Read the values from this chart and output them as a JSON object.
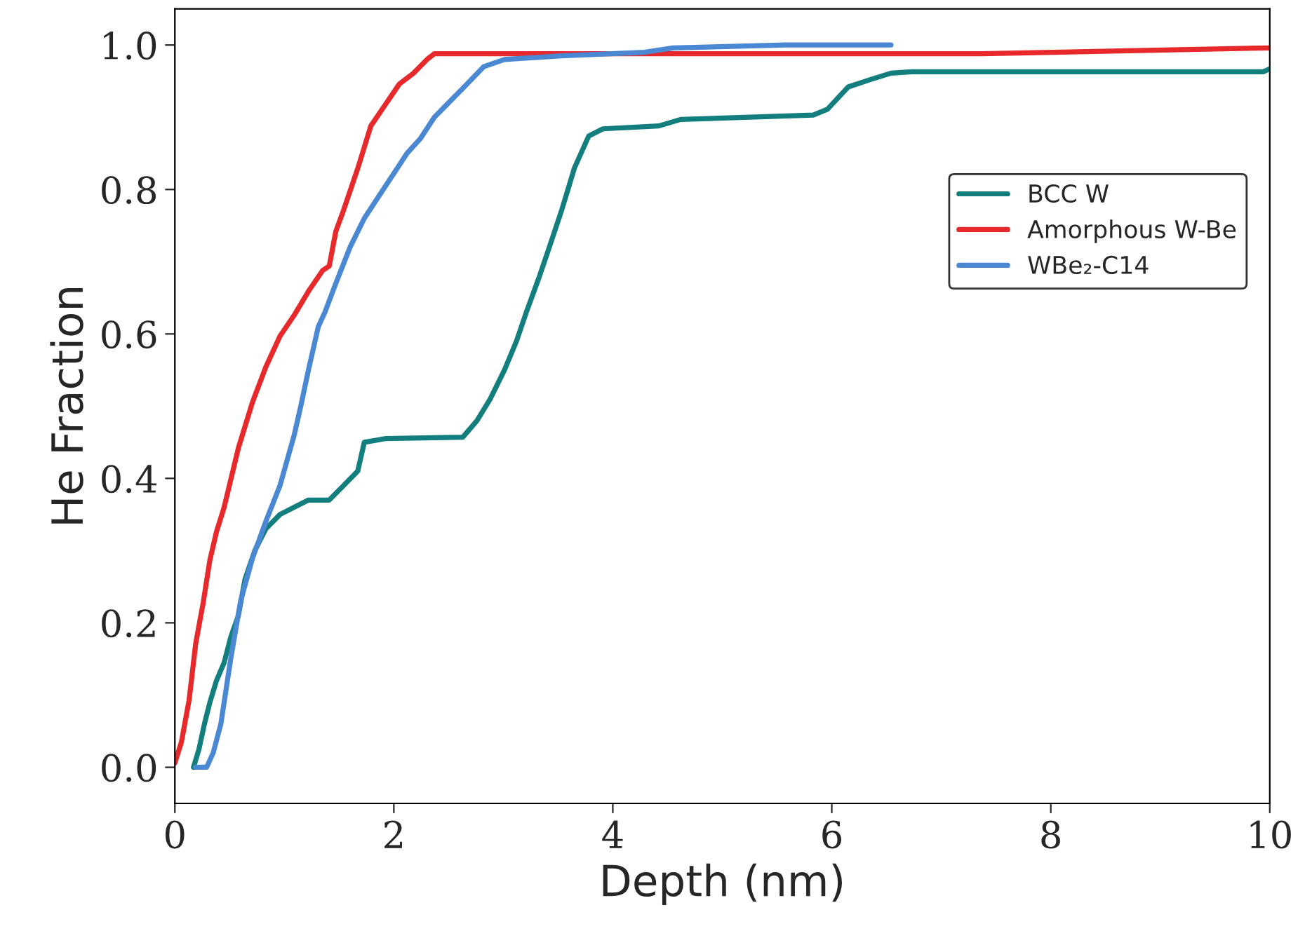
{
  "chart_data": {
    "type": "line",
    "xlabel": "Depth (nm)",
    "ylabel": "He Fraction",
    "xlim": [
      0,
      10
    ],
    "ylim": [
      -0.05,
      1.05
    ],
    "xticks": [
      0,
      2,
      4,
      6,
      8,
      10
    ],
    "yticks": [
      {
        "value": 0,
        "label": "0.0"
      },
      {
        "value": 0.2,
        "label": "0.2"
      },
      {
        "value": 0.4,
        "label": "0.4"
      },
      {
        "value": 0.6,
        "label": "0.6"
      },
      {
        "value": 0.8,
        "label": "0.8"
      },
      {
        "value": 1,
        "label": "1.0"
      }
    ],
    "grid": false,
    "legend": "right",
    "marker": "none",
    "line_style": "solid",
    "series": [
      {
        "name": "BCC W",
        "color": "#137e7e",
        "x": [
          0.17,
          0.22,
          0.27,
          0.32,
          0.38,
          0.45,
          0.51,
          0.58,
          0.64,
          0.73,
          0.83,
          0.96,
          1.09,
          1.22,
          1.41,
          1.54,
          1.67,
          1.73,
          1.92,
          2.63,
          2.76,
          2.88,
          3.01,
          3.12,
          3.21,
          3.33,
          3.42,
          3.53,
          3.65,
          3.78,
          3.91,
          4.42,
          4.62,
          5.83,
          5.96,
          6.15,
          6.35,
          6.54,
          6.73,
          9.94,
          10
        ],
        "values": [
          0.0,
          0.025,
          0.06,
          0.09,
          0.12,
          0.145,
          0.18,
          0.21,
          0.26,
          0.3,
          0.33,
          0.35,
          0.36,
          0.37,
          0.37,
          0.39,
          0.41,
          0.45,
          0.455,
          0.457,
          0.48,
          0.51,
          0.55,
          0.59,
          0.63,
          0.68,
          0.72,
          0.77,
          0.83,
          0.874,
          0.884,
          0.888,
          0.897,
          0.903,
          0.911,
          0.942,
          0.952,
          0.961,
          0.963,
          0.963,
          0.967
        ]
      },
      {
        "name": "Amorphous W-Be",
        "color": "#e8292b",
        "x": [
          0.0,
          0.06,
          0.13,
          0.19,
          0.26,
          0.32,
          0.38,
          0.45,
          0.58,
          0.71,
          0.83,
          0.96,
          1.09,
          1.22,
          1.35,
          1.41,
          1.47,
          1.54,
          1.67,
          1.79,
          1.92,
          2.05,
          2.18,
          2.31,
          2.37,
          7.37,
          10
        ],
        "values": [
          0.006,
          0.035,
          0.093,
          0.171,
          0.229,
          0.287,
          0.326,
          0.36,
          0.442,
          0.506,
          0.554,
          0.597,
          0.626,
          0.659,
          0.688,
          0.694,
          0.742,
          0.771,
          0.829,
          0.888,
          0.917,
          0.946,
          0.961,
          0.981,
          0.988,
          0.988,
          0.996
        ]
      },
      {
        "name": "WBe₂-C14",
        "color": "#4a88d4",
        "x": [
          0.19,
          0.29,
          0.35,
          0.42,
          0.51,
          0.6,
          0.71,
          0.83,
          0.96,
          1.09,
          1.15,
          1.22,
          1.31,
          1.37,
          1.47,
          1.6,
          1.73,
          1.86,
          1.99,
          2.12,
          2.24,
          2.37,
          2.5,
          2.63,
          2.82,
          3.01,
          3.53,
          4.29,
          4.55,
          5.58,
          6.54
        ],
        "values": [
          0.0,
          0.0,
          0.02,
          0.06,
          0.15,
          0.23,
          0.29,
          0.34,
          0.39,
          0.46,
          0.5,
          0.55,
          0.61,
          0.63,
          0.67,
          0.72,
          0.76,
          0.79,
          0.82,
          0.85,
          0.87,
          0.9,
          0.92,
          0.94,
          0.97,
          0.98,
          0.985,
          0.99,
          0.996,
          1.0,
          1.0
        ]
      }
    ]
  }
}
